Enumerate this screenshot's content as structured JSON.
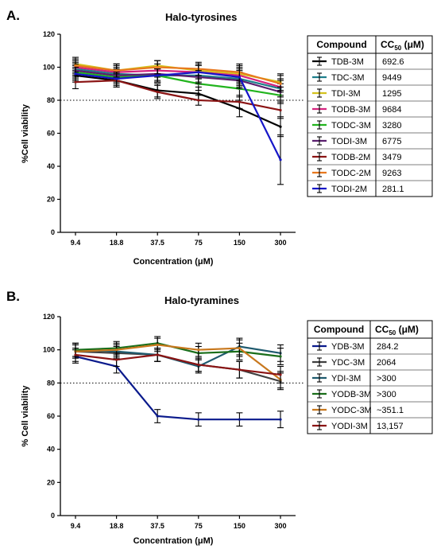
{
  "chart_data": [
    {
      "type": "line",
      "panel_label": "A.",
      "title": "Halo-tyrosines",
      "xlabel": "Concentration (μM)",
      "ylabel": "%Cell viability",
      "categories": [
        "9.4",
        "18.8",
        "37.5",
        "75",
        "150",
        "300"
      ],
      "ylim": [
        0,
        120
      ],
      "yticks": [
        "0",
        "20",
        "40",
        "60",
        "80",
        "100",
        "120"
      ],
      "threshold": 80,
      "legend": {
        "position": "right",
        "col1": "Compound",
        "col2_main": "CC",
        "col2_sub": "50",
        "col2_unit": " (μM)"
      },
      "series": [
        {
          "name": "TDB-3M",
          "cc50": "692.6",
          "color": "#000000",
          "values": [
            95,
            92,
            86,
            84,
            75,
            64
          ],
          "err": [
            4,
            4,
            4,
            4,
            5,
            6
          ]
        },
        {
          "name": "TDC-3M",
          "cc50": "9449",
          "color": "#1f7f8c",
          "values": [
            99,
            96,
            95,
            95,
            93,
            87
          ],
          "err": [
            4,
            4,
            4,
            4,
            5,
            5
          ]
        },
        {
          "name": "TDI-3M",
          "cc50": "1295",
          "color": "#d4c21e",
          "values": [
            102,
            98,
            101,
            98,
            96,
            91
          ],
          "err": [
            4,
            4,
            3,
            4,
            5,
            5
          ]
        },
        {
          "name": "TODB-3M",
          "cc50": "9684",
          "color": "#d4237e",
          "values": [
            100,
            97,
            98,
            97,
            95,
            88
          ],
          "err": [
            4,
            4,
            4,
            4,
            5,
            5
          ]
        },
        {
          "name": "TODC-3M",
          "cc50": "3280",
          "color": "#22b41e",
          "values": [
            97,
            94,
            95,
            90,
            87,
            83
          ],
          "err": [
            4,
            4,
            4,
            4,
            5,
            5
          ]
        },
        {
          "name": "TODI-3M",
          "cc50": "6775",
          "color": "#5a1f6e",
          "values": [
            98,
            95,
            96,
            94,
            92,
            85
          ],
          "err": [
            4,
            4,
            4,
            4,
            5,
            5
          ]
        },
        {
          "name": "TODB-2M",
          "cc50": "3479",
          "color": "#8b1414",
          "values": [
            91,
            92,
            85,
            80,
            79,
            74
          ],
          "err": [
            4,
            4,
            4,
            3,
            4,
            5
          ]
        },
        {
          "name": "TODC-2M",
          "cc50": "9263",
          "color": "#e8781e",
          "values": [
            101,
            98,
            100,
            99,
            97,
            90
          ],
          "err": [
            4,
            4,
            4,
            4,
            5,
            5
          ]
        },
        {
          "name": "TODI-2M",
          "cc50": "281.1",
          "color": "#1515c8",
          "values": [
            96,
            93,
            95,
            97,
            94,
            44
          ],
          "err": [
            4,
            4,
            4,
            4,
            5,
            15
          ]
        }
      ]
    },
    {
      "type": "line",
      "panel_label": "B.",
      "title": "Halo-tyramines",
      "xlabel": "Concentration (μM)",
      "ylabel": "% Cell viability",
      "categories": [
        "9.4",
        "18.8",
        "37.5",
        "75",
        "150",
        "300"
      ],
      "ylim": [
        0,
        120
      ],
      "yticks": [
        "0",
        "20",
        "40",
        "60",
        "80",
        "100",
        "120"
      ],
      "threshold": 80,
      "legend": {
        "position": "right",
        "col1": "Compound",
        "col2_main": "CC",
        "col2_sub": "50",
        "col2_unit": " (μM)"
      },
      "series": [
        {
          "name": "YDB-3M",
          "cc50": "284.2",
          "color": "#0a1a8c",
          "values": [
            96,
            90,
            60,
            58,
            58,
            58
          ],
          "err": [
            4,
            4,
            4,
            4,
            4,
            5
          ]
        },
        {
          "name": "YDC-3M",
          "cc50": "2064",
          "color": "#404040",
          "values": [
            99,
            98,
            97,
            91,
            88,
            81
          ],
          "err": [
            4,
            4,
            4,
            4,
            5,
            5
          ]
        },
        {
          "name": "YDI-3M",
          "cc50": ">300",
          "color": "#1f5a6e",
          "values": [
            100,
            99,
            97,
            90,
            102,
            98
          ],
          "err": [
            4,
            4,
            4,
            4,
            5,
            5
          ]
        },
        {
          "name": "YODB-3M",
          "cc50": ">300",
          "color": "#1a6e1a",
          "values": [
            100,
            101,
            104,
            98,
            99,
            96
          ],
          "err": [
            4,
            4,
            4,
            4,
            5,
            5
          ]
        },
        {
          "name": "YODC-3M",
          "cc50": "~351.1",
          "color": "#c8781e",
          "values": [
            99,
            100,
            103,
            100,
            101,
            82
          ],
          "err": [
            4,
            4,
            4,
            4,
            5,
            5
          ]
        },
        {
          "name": "YODI-3M",
          "cc50": "13,157",
          "color": "#8b1414",
          "values": [
            97,
            94,
            97,
            91,
            88,
            85
          ],
          "err": [
            4,
            4,
            4,
            4,
            5,
            5
          ]
        }
      ]
    }
  ]
}
